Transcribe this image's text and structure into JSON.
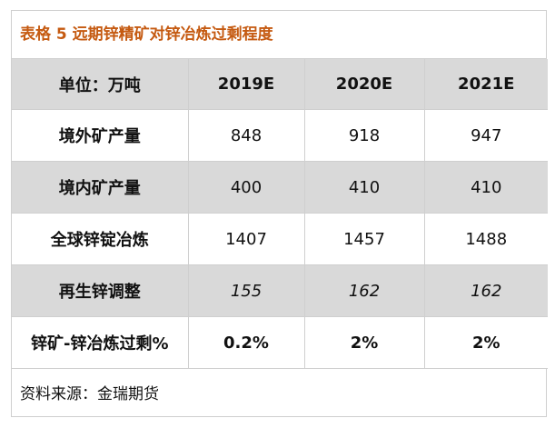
{
  "title": "表格 5 远期锌精矿对锌冶炼过剩程度",
  "table": {
    "header": [
      "单位：万吨",
      "2019E",
      "2020E",
      "2021E"
    ],
    "rows": [
      {
        "label": "境外矿产量",
        "values": [
          "848",
          "918",
          "947"
        ]
      },
      {
        "label": "境内矿产量",
        "values": [
          "400",
          "410",
          "410"
        ]
      },
      {
        "label": "全球锌锭冶炼",
        "values": [
          "1407",
          "1457",
          "1488"
        ]
      },
      {
        "label": "再生锌调整",
        "values": [
          "155",
          "162",
          "162"
        ]
      },
      {
        "label": "锌矿-锌冶炼过剩%",
        "values": [
          "0.2%",
          "2%",
          "2%"
        ]
      }
    ]
  },
  "source": "资料来源：金瑞期货",
  "colors": {
    "title": "#c55a11",
    "row_fill_gray": "#d9d9d9",
    "border": "#cfcfcf"
  }
}
